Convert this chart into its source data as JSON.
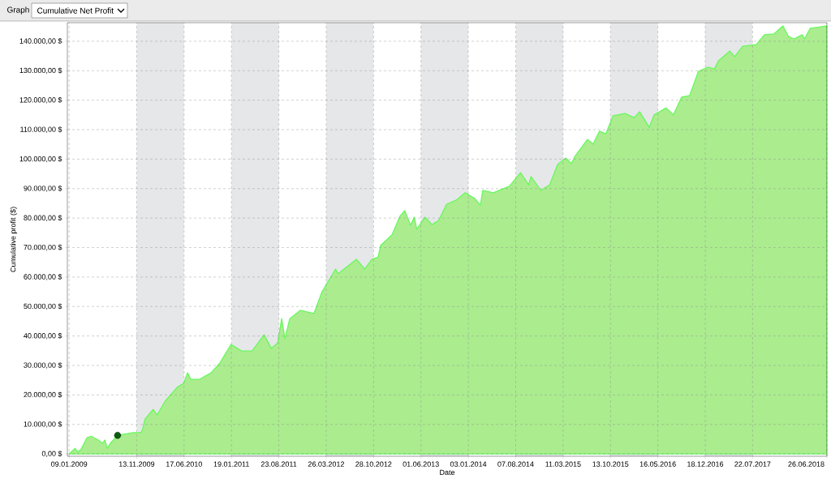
{
  "chart_data": {
    "type": "area",
    "title": "Cumulative Net Profit",
    "annotations": [
      "Graph"
    ],
    "xlabel": "Date",
    "ylabel": "Cumulative profit ($)",
    "xlim": [
      "2009-01-01",
      "2018-06-26"
    ],
    "ylim": [
      -800,
      146300
    ],
    "xticks": [
      {
        "value": "2009-01-09",
        "label": "09.01.2009"
      },
      {
        "value": "2009-11-13",
        "label": "13.11.2009"
      },
      {
        "value": "2010-06-17",
        "label": "17.06.2010"
      },
      {
        "value": "2011-01-19",
        "label": "19.01.2011"
      },
      {
        "value": "2011-08-23",
        "label": "23.08.2011"
      },
      {
        "value": "2012-03-26",
        "label": "26.03.2012"
      },
      {
        "value": "2012-10-28",
        "label": "28.10.2012"
      },
      {
        "value": "2013-06-01",
        "label": "01.06.2013"
      },
      {
        "value": "2014-01-03",
        "label": "03.01.2014"
      },
      {
        "value": "2014-08-07",
        "label": "07.08.2014"
      },
      {
        "value": "2015-03-11",
        "label": "11.03.2015"
      },
      {
        "value": "2015-10-13",
        "label": "13.10.2015"
      },
      {
        "value": "2016-05-16",
        "label": "16.05.2016"
      },
      {
        "value": "2016-12-18",
        "label": "18.12.2016"
      },
      {
        "value": "2017-07-22",
        "label": "22.07.2017"
      },
      {
        "value": "2018-06-26",
        "label": "26.06.2018"
      }
    ],
    "yticks": [
      {
        "value": 0,
        "label": "0,00 $"
      },
      {
        "value": 10000,
        "label": "10.000,00 $"
      },
      {
        "value": 20000,
        "label": "20.000,00 $"
      },
      {
        "value": 30000,
        "label": "30.000,00 $"
      },
      {
        "value": 40000,
        "label": "40.000,00 $"
      },
      {
        "value": 50000,
        "label": "50.000,00 $"
      },
      {
        "value": 60000,
        "label": "60.000,00 $"
      },
      {
        "value": 70000,
        "label": "70.000,00 $"
      },
      {
        "value": 80000,
        "label": "80.000,00 $"
      },
      {
        "value": 90000,
        "label": "90.000,00 $"
      },
      {
        "value": 100000,
        "label": "100.000,00 $"
      },
      {
        "value": 110000,
        "label": "110.000,00 $"
      },
      {
        "value": 120000,
        "label": "120.000,00 $"
      },
      {
        "value": 130000,
        "label": "130.000,00 $"
      },
      {
        "value": 140000,
        "label": "140.000,00 $"
      }
    ],
    "grid": true,
    "bands": [
      {
        "axis": "x",
        "from": "2009-11-13",
        "to": "2010-06-17",
        "color": "#e6e7e9"
      },
      {
        "axis": "x",
        "from": "2011-01-19",
        "to": "2011-08-23",
        "color": "#e6e7e9"
      },
      {
        "axis": "x",
        "from": "2012-03-26",
        "to": "2012-10-28",
        "color": "#e6e7e9"
      },
      {
        "axis": "x",
        "from": "2013-06-01",
        "to": "2014-01-03",
        "color": "#e6e7e9"
      },
      {
        "axis": "x",
        "from": "2014-08-07",
        "to": "2015-03-11",
        "color": "#e6e7e9"
      },
      {
        "axis": "x",
        "from": "2015-10-13",
        "to": "2016-05-16",
        "color": "#e6e7e9"
      },
      {
        "axis": "x",
        "from": "2016-12-18",
        "to": "2017-07-22",
        "color": "#e6e7e9"
      }
    ],
    "series": [
      {
        "color": "#abec8f",
        "x": [
          "2009-01-09",
          "2009-02-05",
          "2009-02-16",
          "2009-03-03",
          "2009-04-01",
          "2009-04-19",
          "2009-05-22",
          "2009-06-10",
          "2009-06-21",
          "2009-07-02",
          "2009-07-16",
          "2009-08-18",
          "2009-10-27",
          "2009-12-03",
          "2009-12-10",
          "2009-12-21",
          "2010-01-27",
          "2010-02-14",
          "2010-03-23",
          "2010-05-17",
          "2010-06-15",
          "2010-07-03",
          "2010-07-18",
          "2010-08-27",
          "2010-10-18",
          "2010-11-27",
          "2011-01-17",
          "2011-03-06",
          "2011-04-23",
          "2011-06-17",
          "2011-07-20",
          "2011-08-18",
          "2011-09-05",
          "2011-09-20",
          "2011-10-12",
          "2011-11-29",
          "2012-01-30",
          "2012-03-07",
          "2012-05-08",
          "2012-05-19",
          "2012-08-11",
          "2012-09-17",
          "2012-10-20",
          "2012-11-18",
          "2012-11-29",
          "2013-01-20",
          "2013-02-25",
          "2013-03-19",
          "2013-04-14",
          "2013-05-02",
          "2013-05-13",
          "2013-06-19",
          "2013-07-22",
          "2013-08-21",
          "2013-09-26",
          "2013-11-09",
          "2013-12-20",
          "2014-02-02",
          "2014-02-27",
          "2014-03-10",
          "2014-04-27",
          "2014-07-09",
          "2014-08-29",
          "2014-10-05",
          "2014-10-16",
          "2014-11-29",
          "2015-01-09",
          "2015-02-14",
          "2015-03-23",
          "2015-04-18",
          "2015-05-06",
          "2015-06-30",
          "2015-07-26",
          "2015-08-24",
          "2015-09-22",
          "2015-10-25",
          "2015-12-19",
          "2016-01-29",
          "2016-02-23",
          "2016-04-07",
          "2016-04-29",
          "2016-06-23",
          "2016-07-26",
          "2016-09-01",
          "2016-10-08",
          "2016-11-17",
          "2016-12-31",
          "2017-01-29",
          "2017-02-17",
          "2017-04-09",
          "2017-05-01",
          "2017-06-07",
          "2017-08-08",
          "2017-09-14",
          "2017-10-28",
          "2017-12-07",
          "2018-01-02",
          "2018-01-27",
          "2018-03-05",
          "2018-03-16",
          "2018-04-11",
          "2018-06-26"
        ],
        "values": [
          0,
          1900,
          600,
          1400,
          5500,
          6000,
          4700,
          3600,
          4700,
          1900,
          3600,
          6300,
          7200,
          7200,
          8300,
          11800,
          15100,
          13200,
          17900,
          22600,
          23900,
          27500,
          25300,
          25300,
          27500,
          30800,
          37100,
          34900,
          34900,
          40400,
          35800,
          37700,
          45900,
          39100,
          45900,
          48700,
          47600,
          55000,
          62700,
          61100,
          66000,
          62700,
          66000,
          66800,
          70700,
          74300,
          80600,
          82500,
          77600,
          80300,
          76200,
          80300,
          77800,
          79200,
          84700,
          86100,
          88600,
          86600,
          84400,
          89400,
          88600,
          90800,
          95400,
          91300,
          94100,
          89400,
          91300,
          98200,
          100400,
          98500,
          101200,
          106700,
          105100,
          109500,
          108600,
          114700,
          115500,
          114100,
          116100,
          110800,
          115000,
          117400,
          115000,
          121000,
          121600,
          129800,
          131200,
          130600,
          133400,
          136700,
          134800,
          138300,
          138900,
          142200,
          142500,
          145200,
          141600,
          140800,
          142200,
          140800,
          144400,
          145200
        ]
      },
      {
        "type": "scatter",
        "color": "#0b5e0b",
        "marker": "circle",
        "x": [
          "2009-08-18"
        ],
        "values": [
          6300
        ]
      }
    ]
  }
}
